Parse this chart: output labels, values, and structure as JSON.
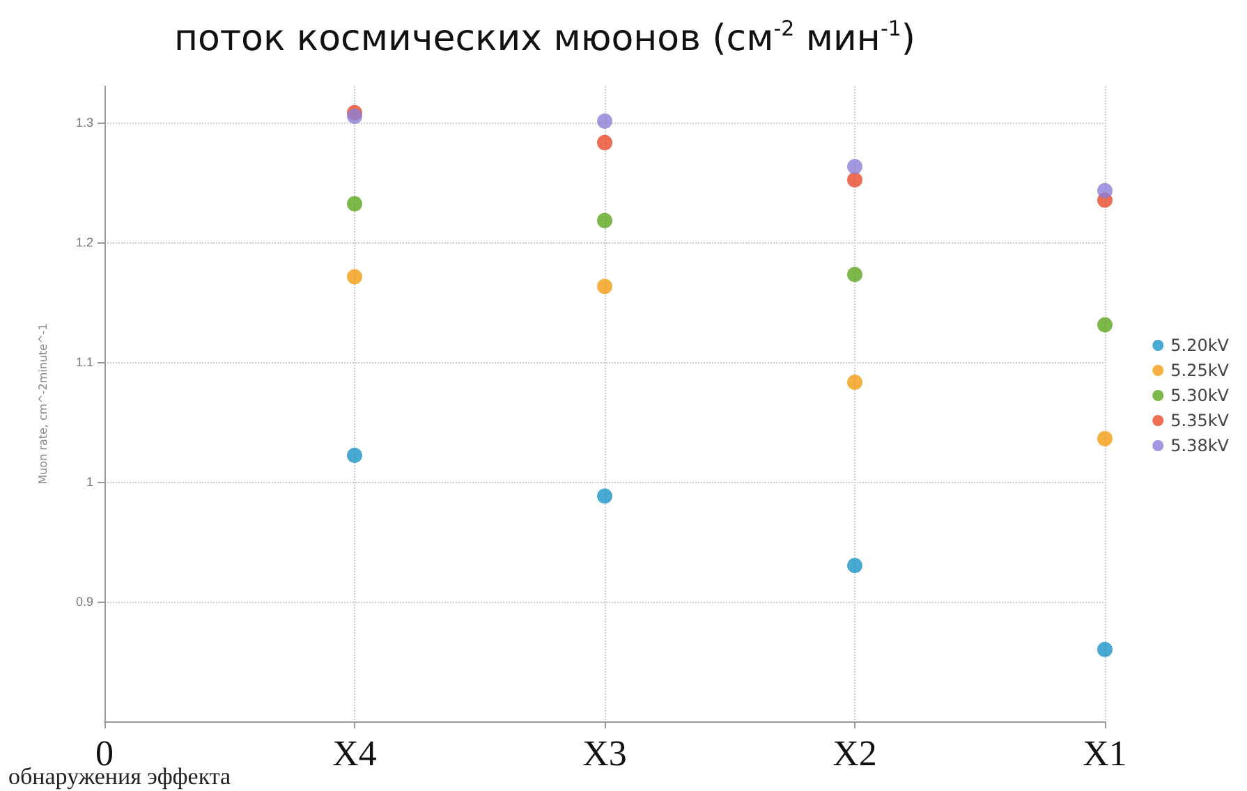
{
  "chart_data": {
    "type": "scatter",
    "title": "поток космических мюонов (см$^{-2}$ мин$^{-1}$)",
    "ylabel": "Muon rate, cm^-2minute^-1",
    "categories": [
      "0",
      "X4",
      "X3",
      "X2",
      "X1"
    ],
    "ylim": [
      0.8,
      1.33
    ],
    "yticks": [
      0.9,
      1.0,
      1.1,
      1.2,
      1.3
    ],
    "series": [
      {
        "name": "5.20kV",
        "color": "#1a93c8",
        "values": [
          null,
          1.022,
          0.988,
          0.93,
          0.86
        ]
      },
      {
        "name": "5.25kV",
        "color": "#f39c12",
        "values": [
          null,
          1.171,
          1.163,
          1.083,
          1.036
        ]
      },
      {
        "name": "5.30kV",
        "color": "#5aa51c",
        "values": [
          null,
          1.232,
          1.218,
          1.173,
          1.131
        ]
      },
      {
        "name": "5.35kV",
        "color": "#e8492a",
        "values": [
          null,
          1.308,
          1.283,
          1.252,
          1.235
        ]
      },
      {
        "name": "5.38kV",
        "color": "#8b7ed8",
        "values": [
          null,
          1.305,
          1.301,
          1.263,
          1.243
        ]
      }
    ],
    "grid": true,
    "legend": "right",
    "marker": "circle",
    "annotations": [
      "обнаружения эффекта"
    ]
  }
}
